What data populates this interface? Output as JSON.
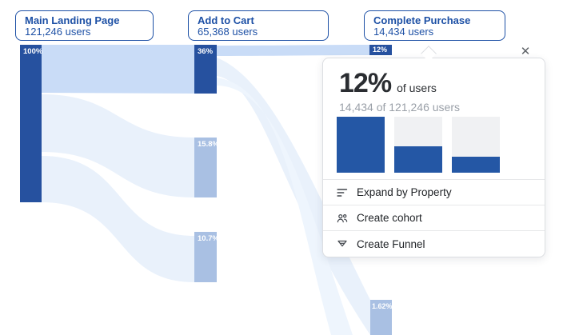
{
  "steps": [
    {
      "title": "Main Landing Page",
      "subtitle": "121,246 users"
    },
    {
      "title": "Add to Cart",
      "subtitle": "65,368 users"
    },
    {
      "title": "Complete Purchase",
      "subtitle": "14,434 users"
    }
  ],
  "sankey": {
    "nodes": [
      {
        "label": "100%",
        "tone": "dark"
      },
      {
        "label": "36%",
        "tone": "dark"
      },
      {
        "label": "15.8%",
        "tone": "light"
      },
      {
        "label": "10.7%",
        "tone": "light"
      },
      {
        "label": "12%",
        "tone": "dark"
      },
      {
        "label": "1.62%",
        "tone": "light"
      }
    ]
  },
  "popup": {
    "headline_value": "12%",
    "headline_suffix": "of users",
    "subline": "14,434 of 121,246 users",
    "close_icon": "✕",
    "mini_chart": {
      "type": "bar",
      "values": [
        100,
        47,
        28
      ]
    },
    "menu": [
      {
        "icon": "expand-by-property-icon",
        "label": "Expand by Property"
      },
      {
        "icon": "create-cohort-icon",
        "label": "Create cohort"
      },
      {
        "icon": "create-funnel-icon",
        "label": "Create Funnel"
      }
    ]
  },
  "colors": {
    "node_dark": "#26519f",
    "node_light": "#a9c0e3",
    "flow_strong": "#c9dcf7",
    "flow_pale": "#e9f1fb",
    "flow_faint": "#eef5fd",
    "card_blue": "#1d50a5",
    "popup_border": "#dcdee2",
    "headline_text": "#2a2d31",
    "subline_text": "#9aa0a8",
    "mini_bar_fill": "#2457a5",
    "mini_bar_track": "#f0f1f3"
  },
  "chart_data": {
    "type": "sankey",
    "title": "User journey funnel",
    "columns": [
      {
        "step": "Main Landing Page",
        "users": 121246,
        "node_percents": [
          "100%"
        ]
      },
      {
        "step": "Add to Cart",
        "users": 65368,
        "node_percents": [
          "36%",
          "15.8%",
          "10.7%"
        ]
      },
      {
        "step": "Complete Purchase",
        "users": 14434,
        "node_percents": [
          "12%",
          "1.62%"
        ]
      }
    ],
    "links": [
      {
        "from": "100%",
        "to": "36%"
      },
      {
        "from": "100%",
        "to": "15.8%"
      },
      {
        "from": "100%",
        "to": "10.7%"
      },
      {
        "from": "36%",
        "to": "12%"
      },
      {
        "from": "36%",
        "to": "1.62%"
      },
      {
        "from": "36%",
        "to": "offscreen-bottom"
      }
    ],
    "selected_node": {
      "percent": "12%",
      "users": 14434,
      "of_users": 121246
    }
  }
}
